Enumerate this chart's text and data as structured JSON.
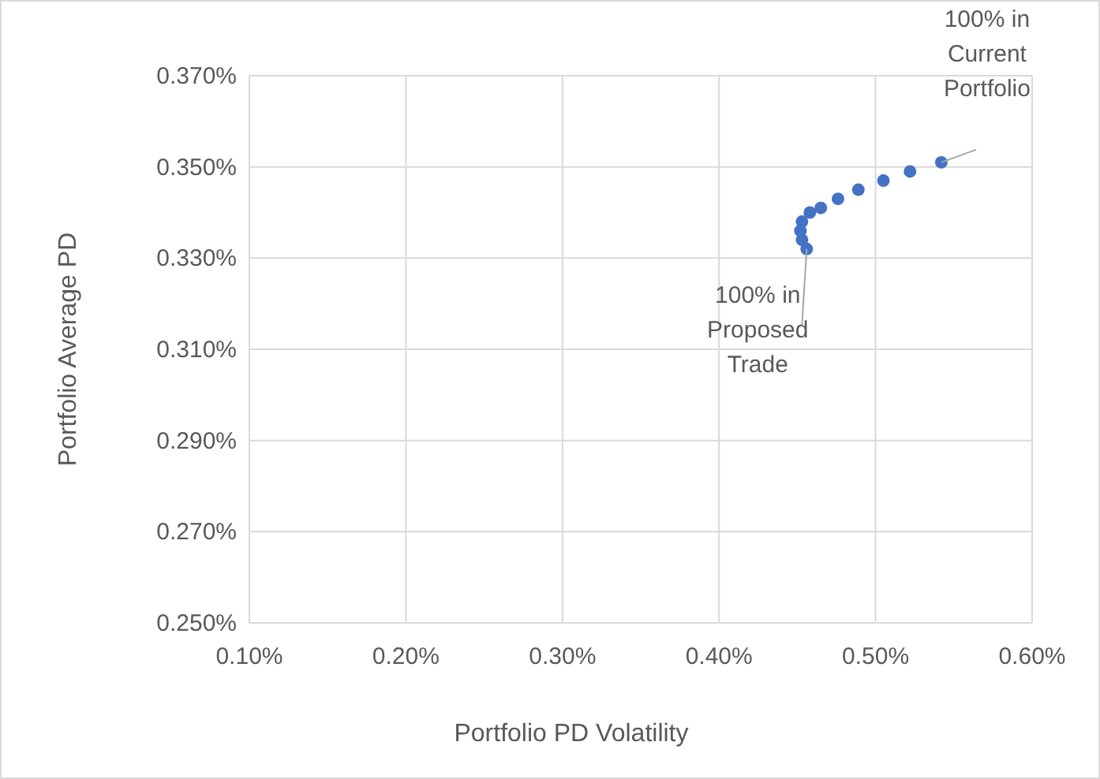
{
  "chart_data": {
    "type": "scatter",
    "xlabel": "Portfolio PD Volatility",
    "ylabel": "Portfolio Average PD",
    "x": [
      0.542,
      0.522,
      0.505,
      0.489,
      0.476,
      0.465,
      0.458,
      0.453,
      0.452,
      0.453,
      0.456
    ],
    "series": [
      {
        "color": "#4472c4",
        "values": [
          0.351,
          0.349,
          0.347,
          0.345,
          0.343,
          0.341,
          0.34,
          0.338,
          0.336,
          0.334,
          0.332
        ]
      }
    ],
    "xlim": [
      0.1,
      0.6
    ],
    "xticks": [
      {
        "value": 0.1,
        "label": "0.10%"
      },
      {
        "value": 0.2,
        "label": "0.20%"
      },
      {
        "value": 0.3,
        "label": "0.30%"
      },
      {
        "value": 0.4,
        "label": "0.40%"
      },
      {
        "value": 0.5,
        "label": "0.50%"
      },
      {
        "value": 0.6,
        "label": "0.60%"
      }
    ],
    "ylim": [
      0.25,
      0.37
    ],
    "yticks": [
      {
        "value": 0.25,
        "label": "0.250%"
      },
      {
        "value": 0.27,
        "label": "0.270%"
      },
      {
        "value": 0.29,
        "label": "0.290%"
      },
      {
        "value": 0.31,
        "label": "0.310%"
      },
      {
        "value": 0.33,
        "label": "0.330%"
      },
      {
        "value": 0.35,
        "label": "0.350%"
      },
      {
        "value": 0.37,
        "label": "0.370%"
      }
    ],
    "annotations": [
      {
        "text": "100% in Current Portfolio",
        "x": 0.542,
        "y": 0.351
      },
      {
        "text": "100% in Proposed Trade",
        "x": 0.456,
        "y": 0.332
      }
    ],
    "grid": true,
    "marker": "circle"
  }
}
